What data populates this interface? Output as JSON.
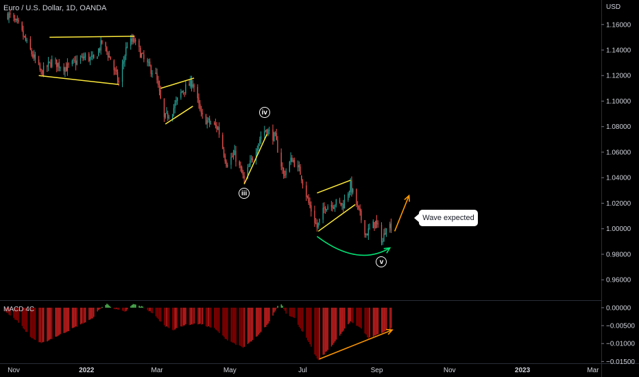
{
  "header": {
    "symbol": "Euro / U.S. Dollar, 1D, OANDA",
    "currency": "USD",
    "indicator": "MACD 4C"
  },
  "colors": {
    "background": "#000000",
    "up": "#26a69a",
    "down": "#ef5350",
    "pattern_lines": "#ffeb3b",
    "arrow": "#ff9800",
    "curve": "#00e676",
    "macd_green": "#4caf50",
    "macd_red": "#b71c1c",
    "macd_darkred": "#7f0000"
  },
  "callout": {
    "text": "Wave expected"
  },
  "wave_labels": [
    {
      "id": "iii",
      "text": "iii",
      "date": "2022-05-13",
      "price": 1.028
    },
    {
      "id": "iv",
      "text": "iv",
      "date": "2022-05-30",
      "price": 1.091
    },
    {
      "id": "v",
      "text": "v",
      "date": "2022-09-05",
      "price": 0.974
    }
  ],
  "chart_data": [
    {
      "type": "candlestick",
      "title": "Euro / U.S. Dollar, 1D, OANDA",
      "x_axis": {
        "type": "date",
        "range": [
          "2021-11-01",
          "2023-03-08"
        ],
        "tick_labels": [
          {
            "date": "2021-11-01",
            "label": "Nov"
          },
          {
            "date": "2022-01-01",
            "label": "2022"
          },
          {
            "date": "2022-03-01",
            "label": "Mar"
          },
          {
            "date": "2022-05-01",
            "label": "May"
          },
          {
            "date": "2022-07-01",
            "label": "Jul"
          },
          {
            "date": "2022-09-01",
            "label": "Sep"
          },
          {
            "date": "2022-11-01",
            "label": "Nov"
          },
          {
            "date": "2023-01-01",
            "label": "2023"
          },
          {
            "date": "2023-03-01",
            "label": "Mar"
          }
        ]
      },
      "y_axis": {
        "label": "USD",
        "range": [
          0.944,
          1.1792
        ],
        "ticks": [
          0.96,
          0.98,
          1.0,
          1.02,
          1.04,
          1.06,
          1.08,
          1.1,
          1.12,
          1.14,
          1.16
        ],
        "tick_labels": [
          "0.96000",
          "0.98000",
          "1.00000",
          "1.02000",
          "1.04000",
          "1.06000",
          "1.08000",
          "1.10000",
          "1.12000",
          "1.14000",
          "1.16000"
        ]
      },
      "price_path": {
        "start_date": "2021-10-27",
        "end_date": "2022-09-13",
        "points": [
          [
            "2021-10-27",
            1.168
          ],
          [
            "2021-11-05",
            1.159
          ],
          [
            "2021-11-12",
            1.145
          ],
          [
            "2021-11-24",
            1.122
          ],
          [
            "2021-12-03",
            1.131
          ],
          [
            "2021-12-15",
            1.126
          ],
          [
            "2021-12-31",
            1.135
          ],
          [
            "2022-01-07",
            1.132
          ],
          [
            "2022-01-14",
            1.146
          ],
          [
            "2022-01-21",
            1.133
          ],
          [
            "2022-01-28",
            1.114
          ],
          [
            "2022-02-04",
            1.145
          ],
          [
            "2022-02-10",
            1.147
          ],
          [
            "2022-02-18",
            1.132
          ],
          [
            "2022-02-28",
            1.12
          ],
          [
            "2022-03-07",
            1.086
          ],
          [
            "2022-03-14",
            1.093
          ],
          [
            "2022-03-22",
            1.108
          ],
          [
            "2022-03-31",
            1.115
          ],
          [
            "2022-04-07",
            1.088
          ],
          [
            "2022-04-14",
            1.083
          ],
          [
            "2022-04-21",
            1.079
          ],
          [
            "2022-04-28",
            1.052
          ],
          [
            "2022-05-05",
            1.058
          ],
          [
            "2022-05-13",
            1.038
          ],
          [
            "2022-05-20",
            1.056
          ],
          [
            "2022-05-27",
            1.073
          ],
          [
            "2022-05-31",
            1.078
          ],
          [
            "2022-06-08",
            1.071
          ],
          [
            "2022-06-15",
            1.042
          ],
          [
            "2022-06-22",
            1.055
          ],
          [
            "2022-06-29",
            1.044
          ],
          [
            "2022-07-06",
            1.02
          ],
          [
            "2022-07-13",
            1.001
          ],
          [
            "2022-07-20",
            1.018
          ],
          [
            "2022-07-28",
            1.02
          ],
          [
            "2022-08-04",
            1.019
          ],
          [
            "2022-08-10",
            1.034
          ],
          [
            "2022-08-16",
            1.016
          ],
          [
            "2022-08-23",
            0.996
          ],
          [
            "2022-08-31",
            1.005
          ],
          [
            "2022-09-06",
            0.99
          ],
          [
            "2022-09-09",
            1.004
          ],
          [
            "2022-09-13",
            1.002
          ]
        ]
      },
      "annotations": [
        {
          "kind": "line",
          "color": "#ffeb3b",
          "from": [
            "2021-12-01",
            1.15
          ],
          "to": [
            "2022-02-10",
            1.1508
          ]
        },
        {
          "kind": "line",
          "color": "#ffeb3b",
          "from": [
            "2021-11-22",
            1.12
          ],
          "to": [
            "2022-01-28",
            1.113
          ]
        },
        {
          "kind": "line",
          "color": "#ffeb3b",
          "from": [
            "2022-03-04",
            1.11
          ],
          "to": [
            "2022-04-01",
            1.118
          ]
        },
        {
          "kind": "line",
          "color": "#ffeb3b",
          "from": [
            "2022-03-08",
            1.082
          ],
          "to": [
            "2022-03-31",
            1.096
          ]
        },
        {
          "kind": "line",
          "color": "#ffeb3b",
          "from": [
            "2022-05-13",
            1.035
          ],
          "to": [
            "2022-06-01",
            1.074
          ]
        },
        {
          "kind": "line",
          "color": "#ffeb3b",
          "from": [
            "2022-07-13",
            1.028
          ],
          "to": [
            "2022-08-10",
            1.038
          ]
        },
        {
          "kind": "line",
          "color": "#ffeb3b",
          "from": [
            "2022-07-14",
            0.998
          ],
          "to": [
            "2022-08-14",
            1.019
          ]
        },
        {
          "kind": "curve",
          "color": "#00e676",
          "from": [
            "2022-07-13",
            0.994
          ],
          "via": [
            "2022-08-16",
            0.97
          ],
          "to": [
            "2022-09-12",
            0.985
          ]
        },
        {
          "kind": "arrow",
          "color": "#ff9800",
          "from": [
            "2022-09-16",
            0.998
          ],
          "to": [
            "2022-09-28",
            1.026
          ]
        }
      ]
    },
    {
      "type": "histogram",
      "title": "MACD 4C",
      "y_axis": {
        "range": [
          -0.0155,
          0.0017
        ],
        "ticks": [
          0.0,
          -0.005,
          -0.01,
          -0.015
        ],
        "tick_labels": [
          "0.00000",
          "−0.00500",
          "−0.01000",
          "−0.01500"
        ]
      },
      "series_path": {
        "start_date": "2021-10-25",
        "end_date": "2022-09-13",
        "points": [
          [
            "2021-10-25",
            -0.001
          ],
          [
            "2021-11-05",
            -0.004
          ],
          [
            "2021-11-15",
            -0.0082
          ],
          [
            "2021-11-24",
            -0.01
          ],
          [
            "2021-12-10",
            -0.0075
          ],
          [
            "2022-01-05",
            -0.0032
          ],
          [
            "2022-01-13",
            0.0
          ],
          [
            "2022-01-18",
            0.001
          ],
          [
            "2022-01-25",
            -0.0004
          ],
          [
            "2022-02-02",
            -0.0012
          ],
          [
            "2022-02-09",
            0.001
          ],
          [
            "2022-02-17",
            0.0002
          ],
          [
            "2022-02-25",
            -0.0015
          ],
          [
            "2022-03-07",
            -0.005
          ],
          [
            "2022-03-15",
            -0.0062
          ],
          [
            "2022-03-24",
            -0.0048
          ],
          [
            "2022-04-05",
            -0.0045
          ],
          [
            "2022-04-18",
            -0.0058
          ],
          [
            "2022-04-28",
            -0.0088
          ],
          [
            "2022-05-12",
            -0.0112
          ],
          [
            "2022-05-24",
            -0.008
          ],
          [
            "2022-06-03",
            -0.004
          ],
          [
            "2022-06-10",
            0.0005
          ],
          [
            "2022-06-13",
            0.0011
          ],
          [
            "2022-06-17",
            -0.0015
          ],
          [
            "2022-06-24",
            -0.003
          ],
          [
            "2022-07-04",
            -0.0085
          ],
          [
            "2022-07-14",
            -0.0148
          ],
          [
            "2022-07-28",
            -0.0095
          ],
          [
            "2022-08-10",
            -0.0038
          ],
          [
            "2022-08-18",
            -0.0055
          ],
          [
            "2022-08-25",
            -0.0085
          ],
          [
            "2022-09-02",
            -0.0074
          ],
          [
            "2022-09-13",
            -0.0058
          ]
        ]
      },
      "annotations": [
        {
          "kind": "arrow",
          "color": "#ff9800",
          "from": [
            "2022-07-15",
            -0.0143
          ],
          "to": [
            "2022-09-14",
            -0.0062
          ]
        }
      ]
    }
  ]
}
